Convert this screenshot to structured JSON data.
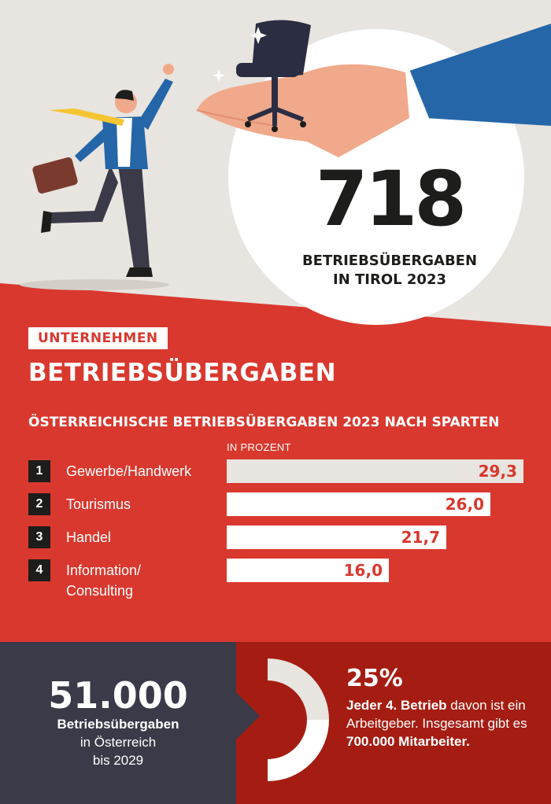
{
  "hero": {
    "number": "718",
    "caption_line1": "BETRIEBSÜBERGABEN",
    "caption_line2": "IN TIROL 2023"
  },
  "tag": "UNTERNEHMEN",
  "headline": "BETRIEBSÜBERGABEN",
  "chart_data": {
    "type": "bar",
    "title": "ÖSTERREICHISCHE BETRIEBSÜBERGABEN 2023 NACH SPARTEN",
    "unit_label": "IN PROZENT",
    "rows": [
      {
        "rank": "1",
        "label": "Gewerbe/Handwerk",
        "label2": "",
        "value": 29.3,
        "value_label": "29,3"
      },
      {
        "rank": "2",
        "label": "Tourismus",
        "label2": "",
        "value": 26.0,
        "value_label": "26,0"
      },
      {
        "rank": "3",
        "label": "Handel",
        "label2": "",
        "value": 21.7,
        "value_label": "21,7"
      },
      {
        "rank": "4",
        "label": "Information/",
        "label2": "Consulting",
        "value": 16.0,
        "value_label": "16,0"
      }
    ]
  },
  "stat_left": {
    "number": "51.000",
    "line1": "Betriebsübergaben",
    "line2": "in Österreich",
    "line3": "bis 2029"
  },
  "stat_right": {
    "percent_value": 25,
    "percent": "25%",
    "bold1": "Jeder 4. Betrieb",
    "text1": " davon ist ein Arbeitgeber. Insgesamt gibt es ",
    "bold2": "700.000 Mitarbeiter."
  },
  "colors": {
    "red": "#d9382e",
    "dark_red": "#a51d12",
    "navy": "#3a3a48",
    "beige": "#e8e4df",
    "black": "#1d1d1b"
  }
}
